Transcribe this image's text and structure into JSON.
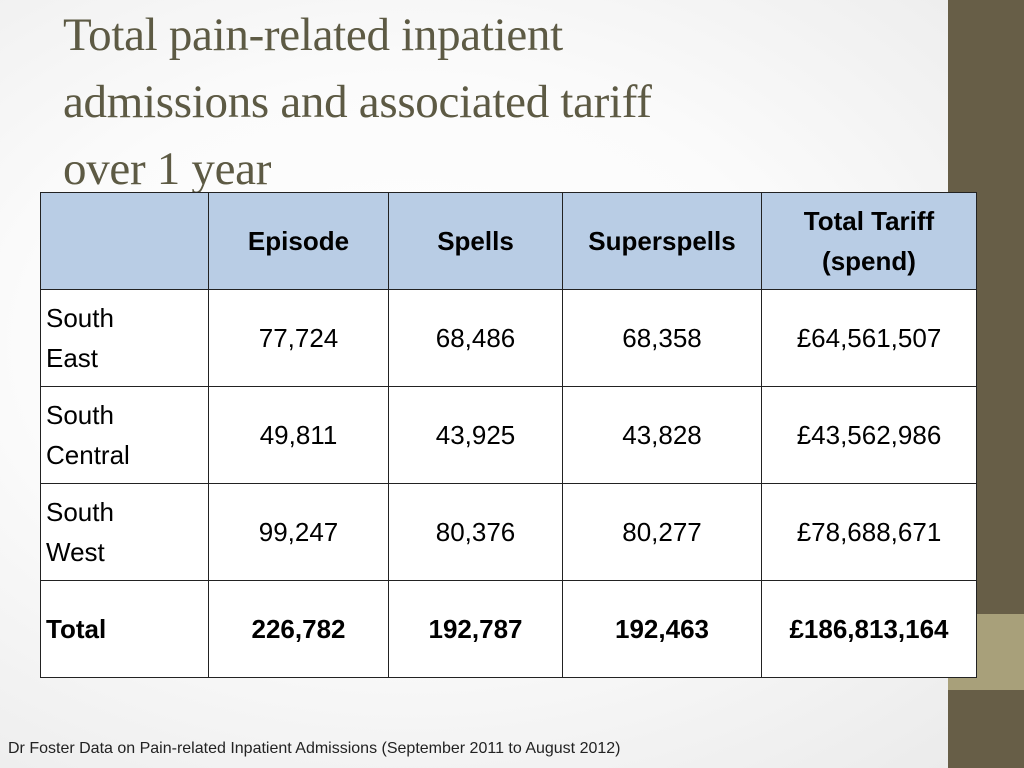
{
  "slide": {
    "title_lines": [
      "Total pain-related inpatient",
      "admissions and associated tariff",
      "over 1 year"
    ],
    "source": "Dr Foster Data on Pain-related Inpatient Admissions (September 2011 to August 2012)",
    "colors": {
      "side_bar": "#675e47",
      "side_accent": "#a8a07a",
      "header_fill": "#b9cde5",
      "title_text": "#5d5a44"
    }
  },
  "table": {
    "headers": [
      "",
      "Episode",
      "Spells",
      "Superspells",
      "Total Tariff",
      "(spend)"
    ],
    "rows": [
      {
        "region_line1": "South",
        "region_line2": "East",
        "episode": "77,724",
        "spells": "68,486",
        "superspells": "68,358",
        "tariff": "£64,561,507"
      },
      {
        "region_line1": "South",
        "region_line2": "Central",
        "episode": "49,811",
        "spells": "43,925",
        "superspells": "43,828",
        "tariff": "£43,562,986"
      },
      {
        "region_line1": "South",
        "region_line2": "West",
        "episode": "99,247",
        "spells": "80,376",
        "superspells": "80,277",
        "tariff": "£78,688,671"
      }
    ],
    "total": {
      "label": "Total",
      "episode": "226,782",
      "spells": "192,787",
      "superspells": "192,463",
      "tariff": "£186,813,164"
    }
  }
}
